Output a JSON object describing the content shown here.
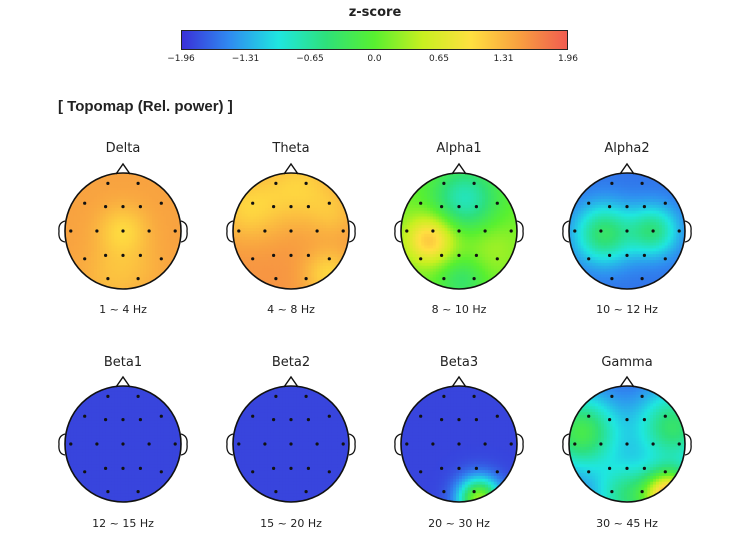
{
  "colorbar": {
    "title": "z-score",
    "min": -1.96,
    "max": 1.96,
    "tick_labels": [
      "−1.96",
      "−1.31",
      "−0.65",
      "0.0",
      "0.65",
      "1.31",
      "1.96"
    ],
    "colormap": [
      "#3a30d8",
      "#2f8cf0",
      "#1fe6e0",
      "#2ee07a",
      "#58f030",
      "#c8f020",
      "#ffe040",
      "#f8a040",
      "#f05c50"
    ]
  },
  "section_title": "[ Topomap (Rel. power) ]",
  "chart_data": {
    "type": "heatmap",
    "title": "",
    "value_label": "z-score",
    "color_range": [
      -1.96,
      1.96
    ],
    "maps": [
      {
        "band": "Delta",
        "range": "1 ~ 4 Hz",
        "baseline": 1.45,
        "features": [
          {
            "cx": 0.0,
            "cy": 0.0,
            "r": 0.3,
            "v": 1.05
          },
          {
            "cx": -0.2,
            "cy": 0.75,
            "r": 0.35,
            "v": 1.25
          },
          {
            "cx": 0.3,
            "cy": 0.65,
            "r": 0.3,
            "v": 1.35
          }
        ]
      },
      {
        "band": "Theta",
        "range": "4 ~ 8 Hz",
        "baseline": 1.55,
        "features": [
          {
            "cx": 0.15,
            "cy": -0.75,
            "r": 0.45,
            "v": 1.1
          },
          {
            "cx": -0.75,
            "cy": -0.4,
            "r": 0.4,
            "v": 1.1
          },
          {
            "cx": 0.65,
            "cy": 0.75,
            "r": 0.3,
            "v": 1.05
          },
          {
            "cx": 0.75,
            "cy": -0.3,
            "r": 0.3,
            "v": 1.3
          }
        ]
      },
      {
        "band": "Alpha1",
        "range": "8 ~ 10 Hz",
        "baseline": 0.1,
        "features": [
          {
            "cx": -0.5,
            "cy": 0.15,
            "r": 0.3,
            "v": 1.2
          },
          {
            "cx": 0.1,
            "cy": -0.55,
            "r": 0.4,
            "v": -0.8
          },
          {
            "cx": 0.55,
            "cy": 0.3,
            "r": 0.35,
            "v": 0.35
          },
          {
            "cx": 0.05,
            "cy": 0.85,
            "r": 0.3,
            "v": -0.4
          }
        ]
      },
      {
        "band": "Alpha2",
        "range": "10 ~ 12 Hz",
        "baseline": -1.6,
        "features": [
          {
            "cx": -0.4,
            "cy": 0.05,
            "r": 0.35,
            "v": -0.4
          },
          {
            "cx": 0.45,
            "cy": 0.0,
            "r": 0.3,
            "v": -0.55
          }
        ]
      },
      {
        "band": "Beta1",
        "range": "12 ~ 15 Hz",
        "baseline": -1.85,
        "features": []
      },
      {
        "band": "Beta2",
        "range": "15 ~ 20 Hz",
        "baseline": -1.85,
        "features": []
      },
      {
        "band": "Beta3",
        "range": "20 ~ 30 Hz",
        "baseline": -1.85,
        "features": [
          {
            "cx": 0.35,
            "cy": 0.95,
            "r": 0.25,
            "v": 0.3
          }
        ]
      },
      {
        "band": "Gamma",
        "range": "30 ~ 45 Hz",
        "baseline": -1.7,
        "features": [
          {
            "cx": -0.8,
            "cy": -0.2,
            "r": 0.45,
            "v": -0.2
          },
          {
            "cx": 0.8,
            "cy": -0.3,
            "r": 0.45,
            "v": -0.4
          },
          {
            "cx": 0.75,
            "cy": 0.9,
            "r": 0.3,
            "v": 1.3
          },
          {
            "cx": 0.0,
            "cy": 0.9,
            "r": 0.4,
            "v": -0.6
          }
        ]
      }
    ]
  }
}
